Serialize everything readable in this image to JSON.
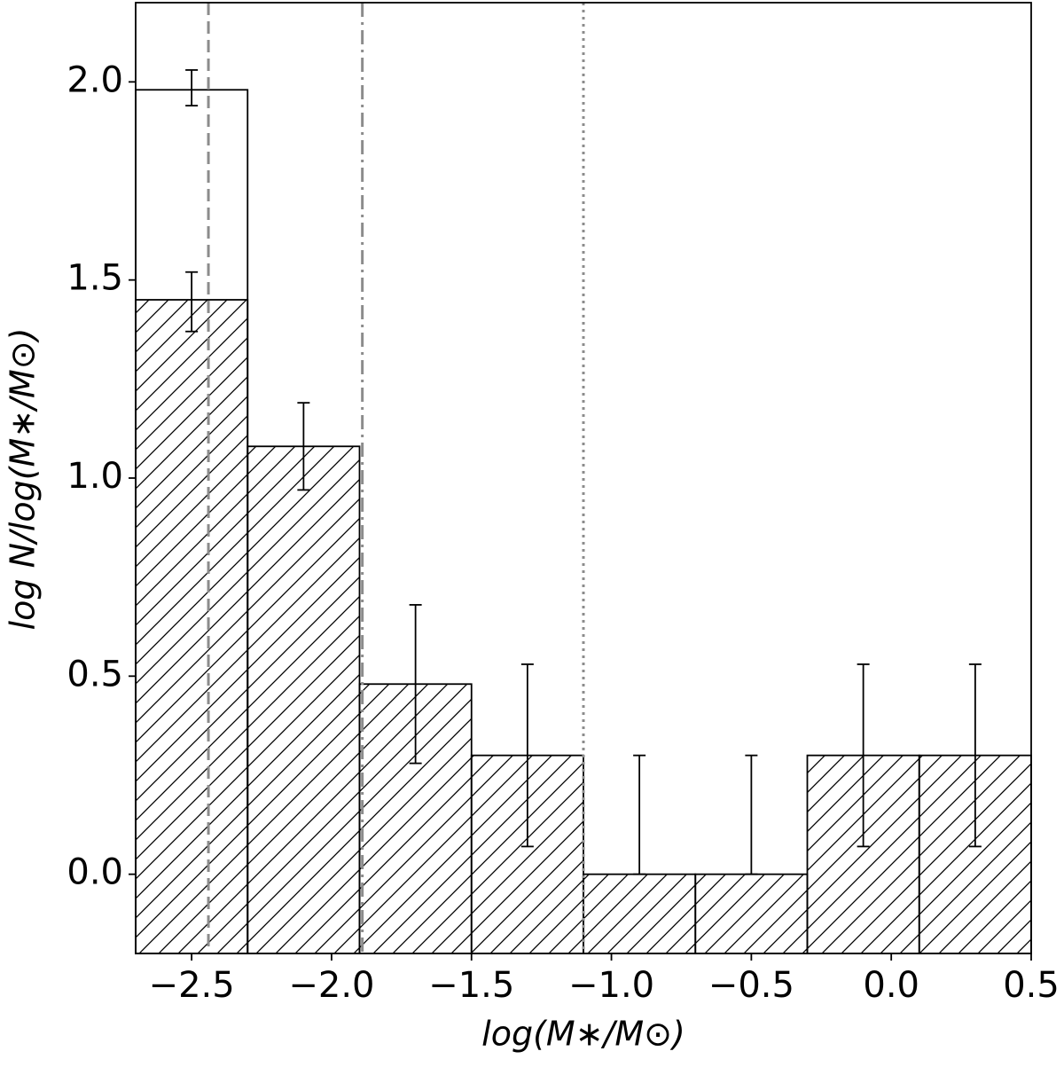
{
  "chart_data": {
    "type": "histogram",
    "xlabel": "log(M∗/M⊙)",
    "ylabel": "log N/log(M∗/M⊙)",
    "bins": [
      -2.7,
      -2.3,
      -1.9,
      -1.5,
      -1.1,
      -0.7,
      -0.3,
      0.1,
      0.5
    ],
    "series": [
      {
        "color": "#000000",
        "hatch": "/",
        "values": [
          1.45,
          1.08,
          0.48,
          0.3,
          0.0,
          0.0,
          0.3,
          0.3
        ],
        "err_low": [
          0.08,
          0.11,
          0.2,
          0.23,
          0.0,
          0.0,
          0.23,
          0.23
        ],
        "err_high": [
          0.07,
          0.11,
          0.2,
          0.23,
          0.3,
          0.3,
          0.23,
          0.23
        ]
      },
      {
        "color": "#000000",
        "values": [
          1.98,
          null,
          null,
          null,
          null,
          null,
          null,
          null
        ],
        "err_low": [
          0.04,
          null,
          null,
          null,
          null,
          null,
          null,
          null
        ],
        "err_high": [
          0.05,
          null,
          null,
          null,
          null,
          null,
          null,
          null
        ]
      }
    ],
    "vlines": [
      {
        "x": -2.44,
        "style": "dashed",
        "color": "#8c8c8c"
      },
      {
        "x": -1.89,
        "style": "dashdot",
        "color": "#8c8c8c"
      },
      {
        "x": -1.1,
        "style": "dotted",
        "color": "#8c8c8c"
      }
    ],
    "xlim": [
      -2.7,
      0.5
    ],
    "ylim": [
      -0.2,
      2.2
    ],
    "xticks": [
      {
        "value": -2.5,
        "label": "−2.5"
      },
      {
        "value": -2.0,
        "label": "−2.0"
      },
      {
        "value": -1.5,
        "label": "−1.5"
      },
      {
        "value": -1.0,
        "label": "−1.0"
      },
      {
        "value": -0.5,
        "label": "−0.5"
      },
      {
        "value": 0.0,
        "label": "0.0"
      },
      0.5
    ],
    "yticks": [
      {
        "value": 0.0,
        "label": "0.0"
      },
      0.5,
      {
        "value": 1.0,
        "label": "1.0"
      },
      1.5,
      {
        "value": 2.0,
        "label": "2.0"
      }
    ],
    "grid": false
  }
}
